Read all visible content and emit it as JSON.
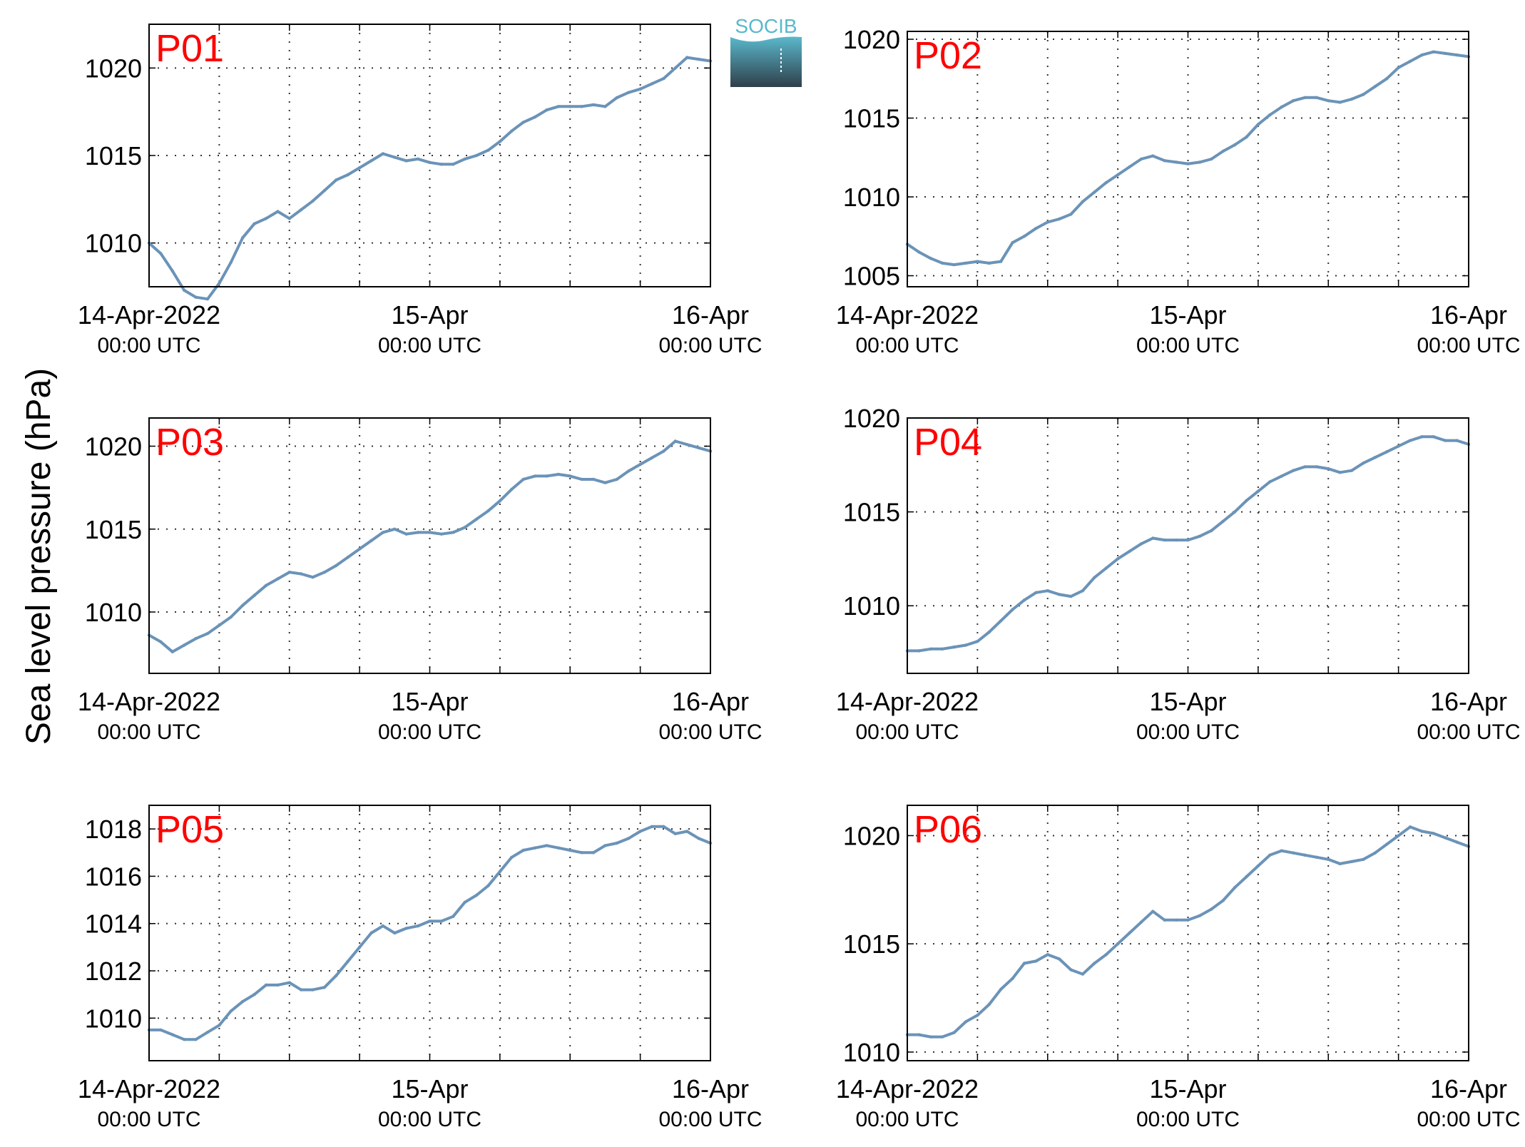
{
  "ylabel": "Sea level pressure (hPa)",
  "logo_text": "SOCIB",
  "colors": {
    "line": "#6b93b8",
    "panel_label": "#ff0000",
    "axis": "#000000",
    "grid": "#333333",
    "logo_top": "#5ab8cc",
    "logo_bottom": "#2f3f4a"
  },
  "x_ticks": [
    {
      "x": 0,
      "line1": "14-Apr-2022",
      "line2": "00:00 UTC"
    },
    {
      "x": 24,
      "line1": "15-Apr",
      "line2": "00:00 UTC"
    },
    {
      "x": 48,
      "line1": "16-Apr",
      "line2": "00:00 UTC"
    }
  ],
  "chart_data": [
    {
      "type": "line",
      "panel": "P01",
      "grid": true,
      "xlim": [
        0,
        48
      ],
      "ylim": [
        1007.5,
        1022.5
      ],
      "yticks": [
        1010,
        1015,
        1020
      ],
      "x": [
        0,
        1,
        2,
        3,
        4,
        5,
        6,
        7,
        8,
        9,
        10,
        11,
        12,
        13,
        14,
        15,
        16,
        17,
        18,
        19,
        20,
        21,
        22,
        23,
        24,
        25,
        26,
        27,
        28,
        29,
        30,
        31,
        32,
        33,
        34,
        35,
        36,
        37,
        38,
        39,
        40,
        41,
        42,
        43,
        44,
        45,
        46,
        47,
        48
      ],
      "values": [
        1010.0,
        1009.4,
        1008.4,
        1007.3,
        1006.9,
        1006.8,
        1007.7,
        1008.9,
        1010.3,
        1011.1,
        1011.4,
        1011.8,
        1011.4,
        1011.9,
        1012.4,
        1013.0,
        1013.6,
        1013.9,
        1014.3,
        1014.7,
        1015.1,
        1014.9,
        1014.7,
        1014.8,
        1014.6,
        1014.5,
        1014.5,
        1014.8,
        1015.0,
        1015.3,
        1015.8,
        1016.4,
        1016.9,
        1017.2,
        1017.6,
        1017.8,
        1017.8,
        1017.8,
        1017.9,
        1017.8,
        1018.3,
        1018.6,
        1018.8,
        1019.1,
        1019.4,
        1020.0,
        1020.6,
        1020.5,
        1020.4
      ]
    },
    {
      "type": "line",
      "panel": "P02",
      "grid": true,
      "xlim": [
        0,
        48
      ],
      "ylim": [
        1004.3,
        1020.5
      ],
      "yticks": [
        1005,
        1010,
        1015,
        1020
      ],
      "x": [
        0,
        1,
        2,
        3,
        4,
        5,
        6,
        7,
        8,
        9,
        10,
        11,
        12,
        13,
        14,
        15,
        16,
        17,
        18,
        19,
        20,
        21,
        22,
        23,
        24,
        25,
        26,
        27,
        28,
        29,
        30,
        31,
        32,
        33,
        34,
        35,
        36,
        37,
        38,
        39,
        40,
        41,
        42,
        43,
        44,
        45,
        46,
        47,
        48
      ],
      "values": [
        1007.0,
        1006.5,
        1006.1,
        1005.8,
        1005.7,
        1005.8,
        1005.9,
        1005.8,
        1005.9,
        1007.1,
        1007.5,
        1008.0,
        1008.4,
        1008.6,
        1008.9,
        1009.7,
        1010.3,
        1010.9,
        1011.4,
        1011.9,
        1012.4,
        1012.6,
        1012.3,
        1012.2,
        1012.1,
        1012.2,
        1012.4,
        1012.9,
        1013.3,
        1013.8,
        1014.6,
        1015.2,
        1015.7,
        1016.1,
        1016.3,
        1016.3,
        1016.1,
        1016.0,
        1016.2,
        1016.5,
        1017.0,
        1017.5,
        1018.2,
        1018.6,
        1019.0,
        1019.2,
        1019.1,
        1019.0,
        1018.9
      ]
    },
    {
      "type": "line",
      "panel": "P03",
      "grid": true,
      "xlim": [
        0,
        48
      ],
      "ylim": [
        1006.3,
        1021.7
      ],
      "yticks": [
        1010,
        1015,
        1020
      ],
      "x": [
        0,
        1,
        2,
        3,
        4,
        5,
        6,
        7,
        8,
        9,
        10,
        11,
        12,
        13,
        14,
        15,
        16,
        17,
        18,
        19,
        20,
        21,
        22,
        23,
        24,
        25,
        26,
        27,
        28,
        29,
        30,
        31,
        32,
        33,
        34,
        35,
        36,
        37,
        38,
        39,
        40,
        41,
        42,
        43,
        44,
        45,
        46,
        47,
        48
      ],
      "values": [
        1008.6,
        1008.2,
        1007.6,
        1008.0,
        1008.4,
        1008.7,
        1009.2,
        1009.7,
        1010.4,
        1011.0,
        1011.6,
        1012.0,
        1012.4,
        1012.3,
        1012.1,
        1012.4,
        1012.8,
        1013.3,
        1013.8,
        1014.3,
        1014.8,
        1015.0,
        1014.7,
        1014.8,
        1014.8,
        1014.7,
        1014.8,
        1015.1,
        1015.6,
        1016.1,
        1016.7,
        1017.4,
        1018.0,
        1018.2,
        1018.2,
        1018.3,
        1018.2,
        1018.0,
        1018.0,
        1017.8,
        1018.0,
        1018.5,
        1018.9,
        1019.3,
        1019.7,
        1020.3,
        1020.1,
        1019.9,
        1019.7
      ]
    },
    {
      "type": "line",
      "panel": "P04",
      "grid": true,
      "xlim": [
        0,
        48
      ],
      "ylim": [
        1006.4,
        1020.0
      ],
      "yticks": [
        1010,
        1015,
        1020
      ],
      "x": [
        0,
        1,
        2,
        3,
        4,
        5,
        6,
        7,
        8,
        9,
        10,
        11,
        12,
        13,
        14,
        15,
        16,
        17,
        18,
        19,
        20,
        21,
        22,
        23,
        24,
        25,
        26,
        27,
        28,
        29,
        30,
        31,
        32,
        33,
        34,
        35,
        36,
        37,
        38,
        39,
        40,
        41,
        42,
        43,
        44,
        45,
        46,
        47,
        48
      ],
      "values": [
        1007.6,
        1007.6,
        1007.7,
        1007.7,
        1007.8,
        1007.9,
        1008.1,
        1008.6,
        1009.2,
        1009.8,
        1010.3,
        1010.7,
        1010.8,
        1010.6,
        1010.5,
        1010.8,
        1011.5,
        1012.0,
        1012.5,
        1012.9,
        1013.3,
        1013.6,
        1013.5,
        1013.5,
        1013.5,
        1013.7,
        1014.0,
        1014.5,
        1015.0,
        1015.6,
        1016.1,
        1016.6,
        1016.9,
        1017.2,
        1017.4,
        1017.4,
        1017.3,
        1017.1,
        1017.2,
        1017.6,
        1017.9,
        1018.2,
        1018.5,
        1018.8,
        1019.0,
        1019.0,
        1018.8,
        1018.8,
        1018.6
      ]
    },
    {
      "type": "line",
      "panel": "P05",
      "grid": true,
      "xlim": [
        0,
        48
      ],
      "ylim": [
        1008.2,
        1019.0
      ],
      "yticks": [
        1010,
        1012,
        1014,
        1016,
        1018
      ],
      "x": [
        0,
        1,
        2,
        3,
        4,
        5,
        6,
        7,
        8,
        9,
        10,
        11,
        12,
        13,
        14,
        15,
        16,
        17,
        18,
        19,
        20,
        21,
        22,
        23,
        24,
        25,
        26,
        27,
        28,
        29,
        30,
        31,
        32,
        33,
        34,
        35,
        36,
        37,
        38,
        39,
        40,
        41,
        42,
        43,
        44,
        45,
        46,
        47,
        48
      ],
      "values": [
        1009.5,
        1009.5,
        1009.3,
        1009.1,
        1009.1,
        1009.4,
        1009.7,
        1010.3,
        1010.7,
        1011.0,
        1011.4,
        1011.4,
        1011.5,
        1011.2,
        1011.2,
        1011.3,
        1011.8,
        1012.4,
        1013.0,
        1013.6,
        1013.9,
        1013.6,
        1013.8,
        1013.9,
        1014.1,
        1014.1,
        1014.3,
        1014.9,
        1015.2,
        1015.6,
        1016.2,
        1016.8,
        1017.1,
        1017.2,
        1017.3,
        1017.2,
        1017.1,
        1017.0,
        1017.0,
        1017.3,
        1017.4,
        1017.6,
        1017.9,
        1018.1,
        1018.1,
        1017.8,
        1017.9,
        1017.6,
        1017.4
      ]
    },
    {
      "type": "line",
      "panel": "P06",
      "grid": true,
      "xlim": [
        0,
        48
      ],
      "ylim": [
        1009.6,
        1021.4
      ],
      "yticks": [
        1010,
        1015,
        1020
      ],
      "x": [
        0,
        1,
        2,
        3,
        4,
        5,
        6,
        7,
        8,
        9,
        10,
        11,
        12,
        13,
        14,
        15,
        16,
        17,
        18,
        19,
        20,
        21,
        22,
        23,
        24,
        25,
        26,
        27,
        28,
        29,
        30,
        31,
        32,
        33,
        34,
        35,
        36,
        37,
        38,
        39,
        40,
        41,
        42,
        43,
        44,
        45,
        46,
        47,
        48
      ],
      "values": [
        1010.8,
        1010.8,
        1010.7,
        1010.7,
        1010.9,
        1011.4,
        1011.7,
        1012.2,
        1012.9,
        1013.4,
        1014.1,
        1014.2,
        1014.5,
        1014.3,
        1013.8,
        1013.6,
        1014.1,
        1014.5,
        1015.0,
        1015.5,
        1016.0,
        1016.5,
        1016.1,
        1016.1,
        1016.1,
        1016.3,
        1016.6,
        1017.0,
        1017.6,
        1018.1,
        1018.6,
        1019.1,
        1019.3,
        1019.2,
        1019.1,
        1019.0,
        1018.9,
        1018.7,
        1018.8,
        1018.9,
        1019.2,
        1019.6,
        1020.0,
        1020.4,
        1020.2,
        1020.1,
        1019.9,
        1019.7,
        1019.5
      ]
    }
  ]
}
